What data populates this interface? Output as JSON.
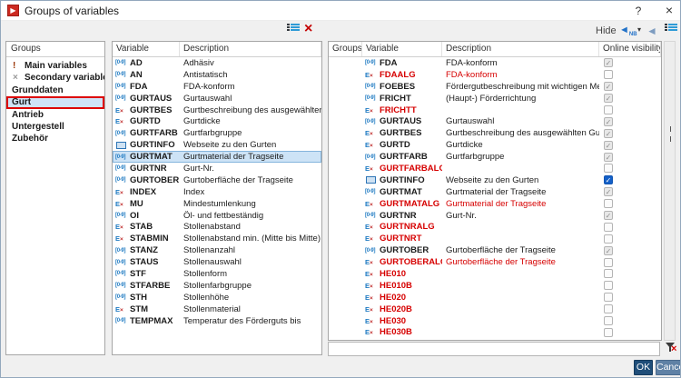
{
  "window": {
    "title": "Groups of variables",
    "help_label": "?",
    "close_label": "×"
  },
  "toolbar": {
    "hide_label": "Hide",
    "nb_subscript": "NB",
    "icons": [
      "assign-list-icon",
      "remove-icon",
      "hide-nb-arrow-icon",
      "dropdown-caret-icon",
      "back-arrow-icon",
      "list-icon"
    ]
  },
  "colors": {
    "selection_border": "#dd0000",
    "selection_bg": "#cfe4f8",
    "red_text": "#d60000",
    "icon_blue": "#1e7ac2",
    "checkbox_active": "#1460c8",
    "ok_button": "#1f4e79",
    "cancel_button": "#5f81a5"
  },
  "groups_panel": {
    "header": "Groups",
    "items": [
      {
        "label": "Main variables",
        "icon": "exclamation",
        "selected": false
      },
      {
        "label": "Secondary variables",
        "icon": "cross",
        "selected": false
      },
      {
        "label": "Grunddaten",
        "selected": false
      },
      {
        "label": "Gurt",
        "selected": true
      },
      {
        "label": "Antrieb",
        "selected": false
      },
      {
        "label": "Untergestell",
        "selected": false
      },
      {
        "label": "Zubehör",
        "selected": false
      }
    ]
  },
  "available_panel": {
    "columns": [
      "Variable",
      "Description"
    ],
    "rows": [
      {
        "variable": "AD",
        "description": "Adhäsiv",
        "icon": "num",
        "selected": false
      },
      {
        "variable": "AN",
        "description": "Antistatisch",
        "icon": "num",
        "selected": false
      },
      {
        "variable": "FDA",
        "description": "FDA-konform",
        "icon": "num",
        "selected": false
      },
      {
        "variable": "GURTAUS",
        "description": "Gurtauswahl",
        "icon": "num",
        "selected": false
      },
      {
        "variable": "GURTBES",
        "description": "Gurtbeschreibung des ausgewählten ...",
        "icon": "exp",
        "selected": false
      },
      {
        "variable": "GURTD",
        "description": "Gurtdicke",
        "icon": "exp",
        "selected": false
      },
      {
        "variable": "GURTFARB",
        "description": "Gurtfarbgruppe",
        "icon": "num",
        "selected": false
      },
      {
        "variable": "GURTINFO",
        "description": "Webseite zu den Gurten",
        "icon": "web",
        "selected": false
      },
      {
        "variable": "GURTMAT",
        "description": "Gurtmaterial der Tragseite",
        "icon": "num",
        "selected": true
      },
      {
        "variable": "GURTNR",
        "description": "Gurt-Nr.",
        "icon": "num",
        "selected": false
      },
      {
        "variable": "GURTOBER",
        "description": "Gurtoberfläche der Tragseite",
        "icon": "num",
        "selected": false
      },
      {
        "variable": "INDEX",
        "description": "Index",
        "icon": "exp",
        "selected": false
      },
      {
        "variable": "MU",
        "description": "Mindestumlenkung",
        "icon": "exp",
        "selected": false
      },
      {
        "variable": "OI",
        "description": "Öl- und fettbeständig",
        "icon": "num",
        "selected": false
      },
      {
        "variable": "STAB",
        "description": "Stollenabstand",
        "icon": "exp",
        "selected": false
      },
      {
        "variable": "STABMIN",
        "description": "Stollenabstand min. (Mitte bis Mitte)",
        "icon": "exp",
        "selected": false
      },
      {
        "variable": "STANZ",
        "description": "Stollenanzahl",
        "icon": "num",
        "selected": false
      },
      {
        "variable": "STAUS",
        "description": "Stollenauswahl",
        "icon": "num",
        "selected": false
      },
      {
        "variable": "STF",
        "description": "Stollenform",
        "icon": "num",
        "selected": false
      },
      {
        "variable": "STFARBE",
        "description": "Stollenfarbgruppe",
        "icon": "num",
        "selected": false
      },
      {
        "variable": "STH",
        "description": "Stollenhöhe",
        "icon": "num",
        "selected": false
      },
      {
        "variable": "STM",
        "description": "Stollenmaterial",
        "icon": "exp",
        "selected": false
      },
      {
        "variable": "TEMPMAX",
        "description": "Temperatur des Förderguts bis",
        "icon": "num",
        "selected": false
      }
    ]
  },
  "assigned_panel": {
    "columns": [
      "Groups",
      "Variable",
      "Description",
      "Online visibility"
    ],
    "rows": [
      {
        "group": "",
        "variable": "FDA",
        "description": "FDA-konform",
        "icon": "num",
        "red": false,
        "checkbox": "checked_disabled"
      },
      {
        "group": "",
        "variable": "FDAALG",
        "description": "FDA-konform",
        "icon": "exp",
        "red": true,
        "checkbox": "unchecked"
      },
      {
        "group": "",
        "variable": "FOEBES",
        "description": "Fördergutbeschreibung mit wichtigen Mer...",
        "icon": "num",
        "red": false,
        "checkbox": "checked_disabled"
      },
      {
        "group": "",
        "variable": "FRICHT",
        "description": "(Haupt-) Förderrichtung",
        "icon": "num",
        "red": false,
        "checkbox": "checked_disabled"
      },
      {
        "group": "",
        "variable": "FRICHTT",
        "description": "",
        "icon": "exp",
        "red": true,
        "checkbox": "unchecked"
      },
      {
        "group": "",
        "variable": "GURTAUS",
        "description": "Gurtauswahl",
        "icon": "num",
        "red": false,
        "checkbox": "checked_disabled"
      },
      {
        "group": "",
        "variable": "GURTBES",
        "description": "Gurtbeschreibung des ausgewählten Gurtes",
        "icon": "exp",
        "red": false,
        "checkbox": "checked_disabled"
      },
      {
        "group": "",
        "variable": "GURTD",
        "description": "Gurtdicke",
        "icon": "exp",
        "red": false,
        "checkbox": "checked_disabled"
      },
      {
        "group": "",
        "variable": "GURTFARB",
        "description": "Gurtfarbgruppe",
        "icon": "num",
        "red": false,
        "checkbox": "checked_disabled"
      },
      {
        "group": "",
        "variable": "GURTFARBALG",
        "description": "",
        "icon": "exp",
        "red": true,
        "checkbox": "unchecked"
      },
      {
        "group": "",
        "variable": "GURTINFO",
        "description": "Webseite zu den Gurten",
        "icon": "web",
        "red": false,
        "checkbox": "checked"
      },
      {
        "group": "",
        "variable": "GURTMAT",
        "description": "Gurtmaterial der Tragseite",
        "icon": "num",
        "red": false,
        "checkbox": "checked_disabled"
      },
      {
        "group": "",
        "variable": "GURTMATALG",
        "description": "Gurtmaterial der Tragseite",
        "icon": "exp",
        "red": true,
        "checkbox": "unchecked"
      },
      {
        "group": "",
        "variable": "GURTNR",
        "description": "Gurt-Nr.",
        "icon": "num",
        "red": false,
        "checkbox": "checked_disabled"
      },
      {
        "group": "",
        "variable": "GURTNRALG",
        "description": "",
        "icon": "exp",
        "red": true,
        "checkbox": "unchecked"
      },
      {
        "group": "",
        "variable": "GURTNRT",
        "description": "",
        "icon": "exp",
        "red": true,
        "checkbox": "unchecked"
      },
      {
        "group": "",
        "variable": "GURTOBER",
        "description": "Gurtoberfläche der Tragseite",
        "icon": "num",
        "red": false,
        "checkbox": "checked_disabled"
      },
      {
        "group": "",
        "variable": "GURTOBERALG",
        "description": "Gurtoberfläche der Tragseite",
        "icon": "exp",
        "red": true,
        "checkbox": "unchecked"
      },
      {
        "group": "",
        "variable": "HE010",
        "description": "",
        "icon": "exp",
        "red": true,
        "checkbox": "unchecked"
      },
      {
        "group": "",
        "variable": "HE010B",
        "description": "",
        "icon": "exp",
        "red": true,
        "checkbox": "unchecked"
      },
      {
        "group": "",
        "variable": "HE020",
        "description": "",
        "icon": "exp",
        "red": true,
        "checkbox": "unchecked"
      },
      {
        "group": "",
        "variable": "HE020B",
        "description": "",
        "icon": "exp",
        "red": true,
        "checkbox": "unchecked"
      },
      {
        "group": "",
        "variable": "HE030",
        "description": "",
        "icon": "exp",
        "red": true,
        "checkbox": "unchecked"
      },
      {
        "group": "",
        "variable": "HE030B",
        "description": "",
        "icon": "exp",
        "red": true,
        "checkbox": "unchecked"
      }
    ]
  },
  "filter": {
    "value": "",
    "placeholder": ""
  },
  "footer": {
    "ok_label": "OK",
    "cancel_label": "Cancel"
  }
}
